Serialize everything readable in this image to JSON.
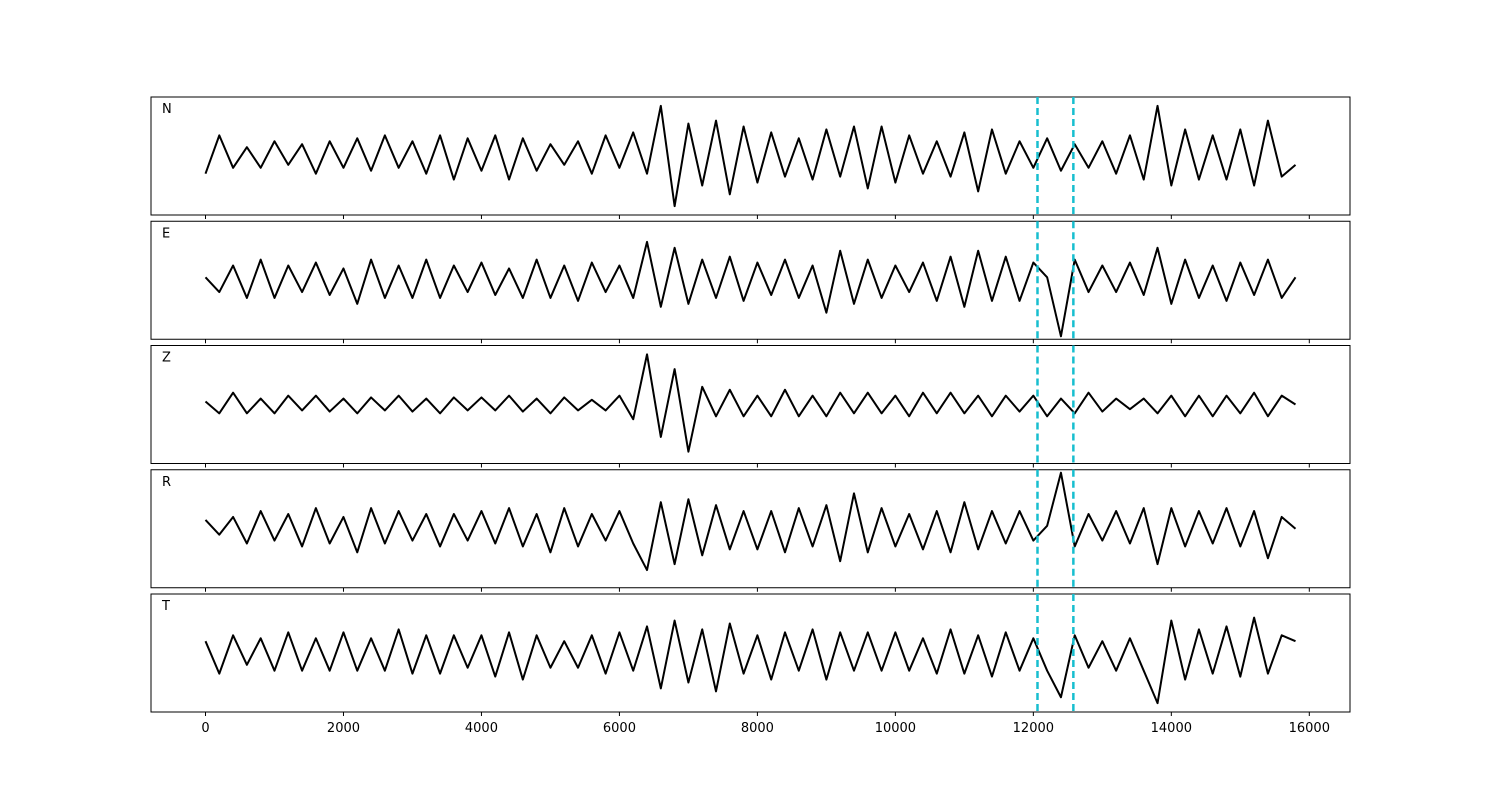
{
  "chart_data": {
    "type": "line",
    "layout": "stacked",
    "x": [
      0,
      200,
      400,
      600,
      800,
      1000,
      1200,
      1400,
      1600,
      1800,
      2000,
      2200,
      2400,
      2600,
      2800,
      3000,
      3200,
      3400,
      3600,
      3800,
      4000,
      4200,
      4400,
      4600,
      4800,
      5000,
      5200,
      5400,
      5600,
      5800,
      6000,
      6200,
      6400,
      6600,
      6800,
      7000,
      7200,
      7400,
      7600,
      7800,
      8000,
      8200,
      8400,
      8600,
      8800,
      9000,
      9200,
      9400,
      9600,
      9800,
      10000,
      10200,
      10400,
      10600,
      10800,
      11000,
      11200,
      11400,
      11600,
      11800,
      12000,
      12200,
      12400,
      12600,
      12800,
      13000,
      13200,
      13400,
      13600,
      13800,
      14000,
      14200,
      14400,
      14600,
      14800,
      15000,
      15200,
      15400,
      15600,
      15800
    ],
    "series": [
      {
        "name": "N",
        "color": "#000000",
        "values": [
          -0.3,
          0.35,
          -0.2,
          0.15,
          -0.2,
          0.25,
          -0.15,
          0.2,
          -0.3,
          0.25,
          -0.2,
          0.3,
          -0.25,
          0.35,
          -0.2,
          0.25,
          -0.3,
          0.35,
          -0.4,
          0.3,
          -0.25,
          0.35,
          -0.4,
          0.3,
          -0.25,
          0.2,
          -0.15,
          0.25,
          -0.3,
          0.35,
          -0.2,
          0.4,
          -0.3,
          0.85,
          -0.85,
          0.55,
          -0.5,
          0.6,
          -0.65,
          0.5,
          -0.45,
          0.4,
          -0.35,
          0.3,
          -0.4,
          0.45,
          -0.35,
          0.5,
          -0.55,
          0.5,
          -0.45,
          0.35,
          -0.3,
          0.25,
          -0.35,
          0.4,
          -0.6,
          0.45,
          -0.3,
          0.25,
          -0.2,
          0.3,
          -0.25,
          0.2,
          -0.2,
          0.25,
          -0.3,
          0.35,
          -0.4,
          0.85,
          -0.5,
          0.45,
          -0.4,
          0.35,
          -0.4,
          0.45,
          -0.5,
          0.6,
          -0.35,
          -0.15
        ]
      },
      {
        "name": "E",
        "color": "#000000",
        "values": [
          0.05,
          -0.2,
          0.25,
          -0.3,
          0.35,
          -0.3,
          0.25,
          -0.2,
          0.3,
          -0.25,
          0.2,
          -0.4,
          0.35,
          -0.3,
          0.25,
          -0.3,
          0.35,
          -0.3,
          0.25,
          -0.2,
          0.3,
          -0.25,
          0.2,
          -0.3,
          0.35,
          -0.3,
          0.25,
          -0.35,
          0.3,
          -0.2,
          0.25,
          -0.3,
          0.65,
          -0.45,
          0.55,
          -0.4,
          0.35,
          -0.3,
          0.4,
          -0.35,
          0.3,
          -0.25,
          0.35,
          -0.3,
          0.25,
          -0.55,
          0.5,
          -0.4,
          0.35,
          -0.3,
          0.25,
          -0.2,
          0.3,
          -0.35,
          0.4,
          -0.45,
          0.5,
          -0.35,
          0.4,
          -0.35,
          0.3,
          0.05,
          -0.95,
          0.35,
          -0.2,
          0.25,
          -0.2,
          0.3,
          -0.25,
          0.55,
          -0.4,
          0.35,
          -0.3,
          0.25,
          -0.35,
          0.3,
          -0.25,
          0.35,
          -0.3,
          0.05
        ]
      },
      {
        "name": "Z",
        "color": "#000000",
        "values": [
          0.05,
          -0.15,
          0.2,
          -0.15,
          0.1,
          -0.15,
          0.15,
          -0.1,
          0.15,
          -0.12,
          0.1,
          -0.15,
          0.12,
          -0.1,
          0.15,
          -0.12,
          0.1,
          -0.15,
          0.12,
          -0.1,
          0.12,
          -0.1,
          0.15,
          -0.12,
          0.1,
          -0.15,
          0.12,
          -0.1,
          0.08,
          -0.1,
          0.15,
          -0.25,
          0.85,
          -0.55,
          0.6,
          -0.8,
          0.3,
          -0.2,
          0.25,
          -0.2,
          0.15,
          -0.2,
          0.25,
          -0.2,
          0.15,
          -0.2,
          0.2,
          -0.15,
          0.2,
          -0.15,
          0.15,
          -0.2,
          0.2,
          -0.15,
          0.2,
          -0.15,
          0.15,
          -0.2,
          0.15,
          -0.12,
          0.15,
          -0.2,
          0.1,
          -0.15,
          0.2,
          -0.12,
          0.1,
          -0.08,
          0.1,
          -0.15,
          0.15,
          -0.2,
          0.15,
          -0.2,
          0.15,
          -0.15,
          0.2,
          -0.2,
          0.15,
          0.0
        ]
      },
      {
        "name": "R",
        "color": "#000000",
        "values": [
          0.15,
          -0.1,
          0.2,
          -0.25,
          0.3,
          -0.2,
          0.25,
          -0.3,
          0.35,
          -0.25,
          0.2,
          -0.4,
          0.35,
          -0.25,
          0.3,
          -0.2,
          0.25,
          -0.3,
          0.25,
          -0.2,
          0.3,
          -0.25,
          0.35,
          -0.3,
          0.25,
          -0.4,
          0.35,
          -0.3,
          0.25,
          -0.2,
          0.3,
          -0.25,
          -0.7,
          0.45,
          -0.6,
          0.5,
          -0.45,
          0.4,
          -0.35,
          0.3,
          -0.35,
          0.3,
          -0.4,
          0.35,
          -0.3,
          0.4,
          -0.55,
          0.6,
          -0.4,
          0.35,
          -0.3,
          0.25,
          -0.35,
          0.3,
          -0.4,
          0.45,
          -0.35,
          0.3,
          -0.25,
          0.3,
          -0.2,
          0.05,
          0.95,
          -0.3,
          0.25,
          -0.2,
          0.3,
          -0.25,
          0.35,
          -0.6,
          0.35,
          -0.3,
          0.3,
          -0.25,
          0.35,
          -0.3,
          0.3,
          -0.5,
          0.2,
          0.0
        ]
      },
      {
        "name": "T",
        "color": "#000000",
        "values": [
          0.2,
          -0.35,
          0.3,
          -0.2,
          0.25,
          -0.3,
          0.35,
          -0.3,
          0.25,
          -0.3,
          0.35,
          -0.3,
          0.25,
          -0.3,
          0.4,
          -0.35,
          0.3,
          -0.35,
          0.3,
          -0.25,
          0.3,
          -0.4,
          0.35,
          -0.45,
          0.3,
          -0.25,
          0.2,
          -0.25,
          0.3,
          -0.35,
          0.35,
          -0.3,
          0.45,
          -0.6,
          0.55,
          -0.5,
          0.4,
          -0.65,
          0.5,
          -0.35,
          0.3,
          -0.45,
          0.35,
          -0.3,
          0.4,
          -0.45,
          0.35,
          -0.3,
          0.35,
          -0.3,
          0.35,
          -0.3,
          0.25,
          -0.35,
          0.4,
          -0.35,
          0.3,
          -0.4,
          0.35,
          -0.3,
          0.25,
          -0.3,
          -0.75,
          0.3,
          -0.25,
          0.2,
          -0.3,
          0.25,
          -0.3,
          -0.85,
          0.55,
          -0.45,
          0.4,
          -0.35,
          0.45,
          -0.4,
          0.6,
          -0.35,
          0.3,
          0.2
        ]
      }
    ],
    "xlim": [
      -790,
      16590
    ],
    "xticks": [
      0,
      2000,
      4000,
      6000,
      8000,
      10000,
      12000,
      14000,
      16000
    ],
    "ylim": [
      -1,
      1
    ],
    "vlines": [
      12060,
      12580
    ],
    "vline_color": "#17becf"
  }
}
